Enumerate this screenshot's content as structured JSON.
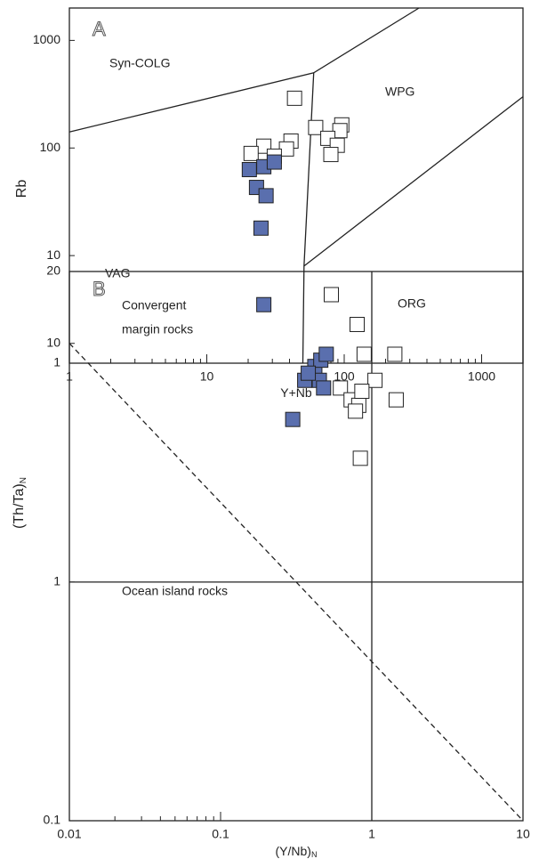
{
  "chart_data": [
    {
      "type": "scatter",
      "panel": "A",
      "x_label": "Y+Nb",
      "y_label": "Rb",
      "y_label_subscript": null,
      "xscale": "log",
      "yscale": "log",
      "xlim": [
        1,
        2000
      ],
      "ylim": [
        1,
        2000
      ],
      "xticks": [
        1,
        10,
        100,
        1000
      ],
      "yticks": [
        1,
        10,
        100,
        1000
      ],
      "xticks_minor": [
        2,
        3,
        4,
        5,
        6,
        7,
        8,
        9,
        20,
        30,
        40,
        50,
        60,
        70,
        80,
        90,
        200,
        300,
        400,
        500,
        600,
        700,
        800,
        900
      ],
      "boundaries": [
        {
          "x": [
            1,
            60,
            350
          ],
          "y": [
            141,
            500,
            2000
          ],
          "dashed": false
        },
        {
          "x": [
            60,
            51,
            50
          ],
          "y": [
            500,
            8,
            1
          ],
          "dashed": false
        },
        {
          "x": [
            51,
            2000
          ],
          "y": [
            8,
            300
          ],
          "dashed": false
        }
      ],
      "annotations": [
        "Syn-COLG",
        "WPG",
        "VAG",
        "ORG"
      ],
      "series": [
        {
          "color": "#ffffff",
          "x": [
            43.5,
            62,
            96,
            93,
            76,
            89,
            80,
            41,
            38,
            26,
            21,
            31
          ],
          "values": [
            290,
            155,
            164,
            145,
            123,
            106,
            87,
            116,
            98,
            104,
            89,
            84
          ]
        },
        {
          "color": "#5a6fae",
          "x": [
            20.4,
            26,
            31,
            23,
            27,
            24.8,
            26
          ],
          "values": [
            63,
            67,
            74,
            43,
            36,
            18,
            3.5
          ]
        }
      ]
    },
    {
      "type": "scatter",
      "panel": "B",
      "x_label": "(Y/Nb)",
      "y_label": "(Th/Ta)",
      "x_label_subscript": "N",
      "y_label_subscript": "N",
      "xscale": "log",
      "yscale": "log",
      "xlim": [
        0.01,
        10
      ],
      "ylim": [
        0.1,
        20
      ],
      "xticks": [
        0.01,
        0.1,
        1,
        10
      ],
      "yticks": [
        0.1,
        1,
        10,
        20
      ],
      "xticks_minor": [
        0.02,
        0.03,
        0.04,
        0.05,
        0.06,
        0.07,
        0.08,
        0.09
      ],
      "boundaries": [
        {
          "x": [
            0.01,
            10
          ],
          "y": [
            10,
            0.1
          ],
          "dashed": true
        },
        {
          "x": [
            0.01,
            10
          ],
          "y": [
            1,
            1
          ],
          "dashed": false
        },
        {
          "x": [
            1,
            1
          ],
          "y": [
            0.1,
            20
          ],
          "dashed": false
        }
      ],
      "annotations": [
        "Convergent",
        "margin rocks",
        "Ocean island rocks"
      ],
      "series": [
        {
          "color": "#ffffff",
          "x": [
            0.54,
            0.8,
            0.89,
            1.42,
            1.05,
            0.62,
            0.73,
            0.82,
            0.86,
            0.78,
            1.45,
            0.84
          ],
          "values": [
            16,
            12,
            9,
            9,
            7,
            6.5,
            5.8,
            5.5,
            6.3,
            5.2,
            5.8,
            3.3
          ]
        },
        {
          "color": "#5a6fae",
          "x": [
            0.36,
            0.42,
            0.46,
            0.5,
            0.45,
            0.48,
            0.3,
            0.38
          ],
          "values": [
            7,
            8,
            8.5,
            9,
            7,
            6.5,
            4.8,
            7.5
          ]
        }
      ]
    }
  ]
}
